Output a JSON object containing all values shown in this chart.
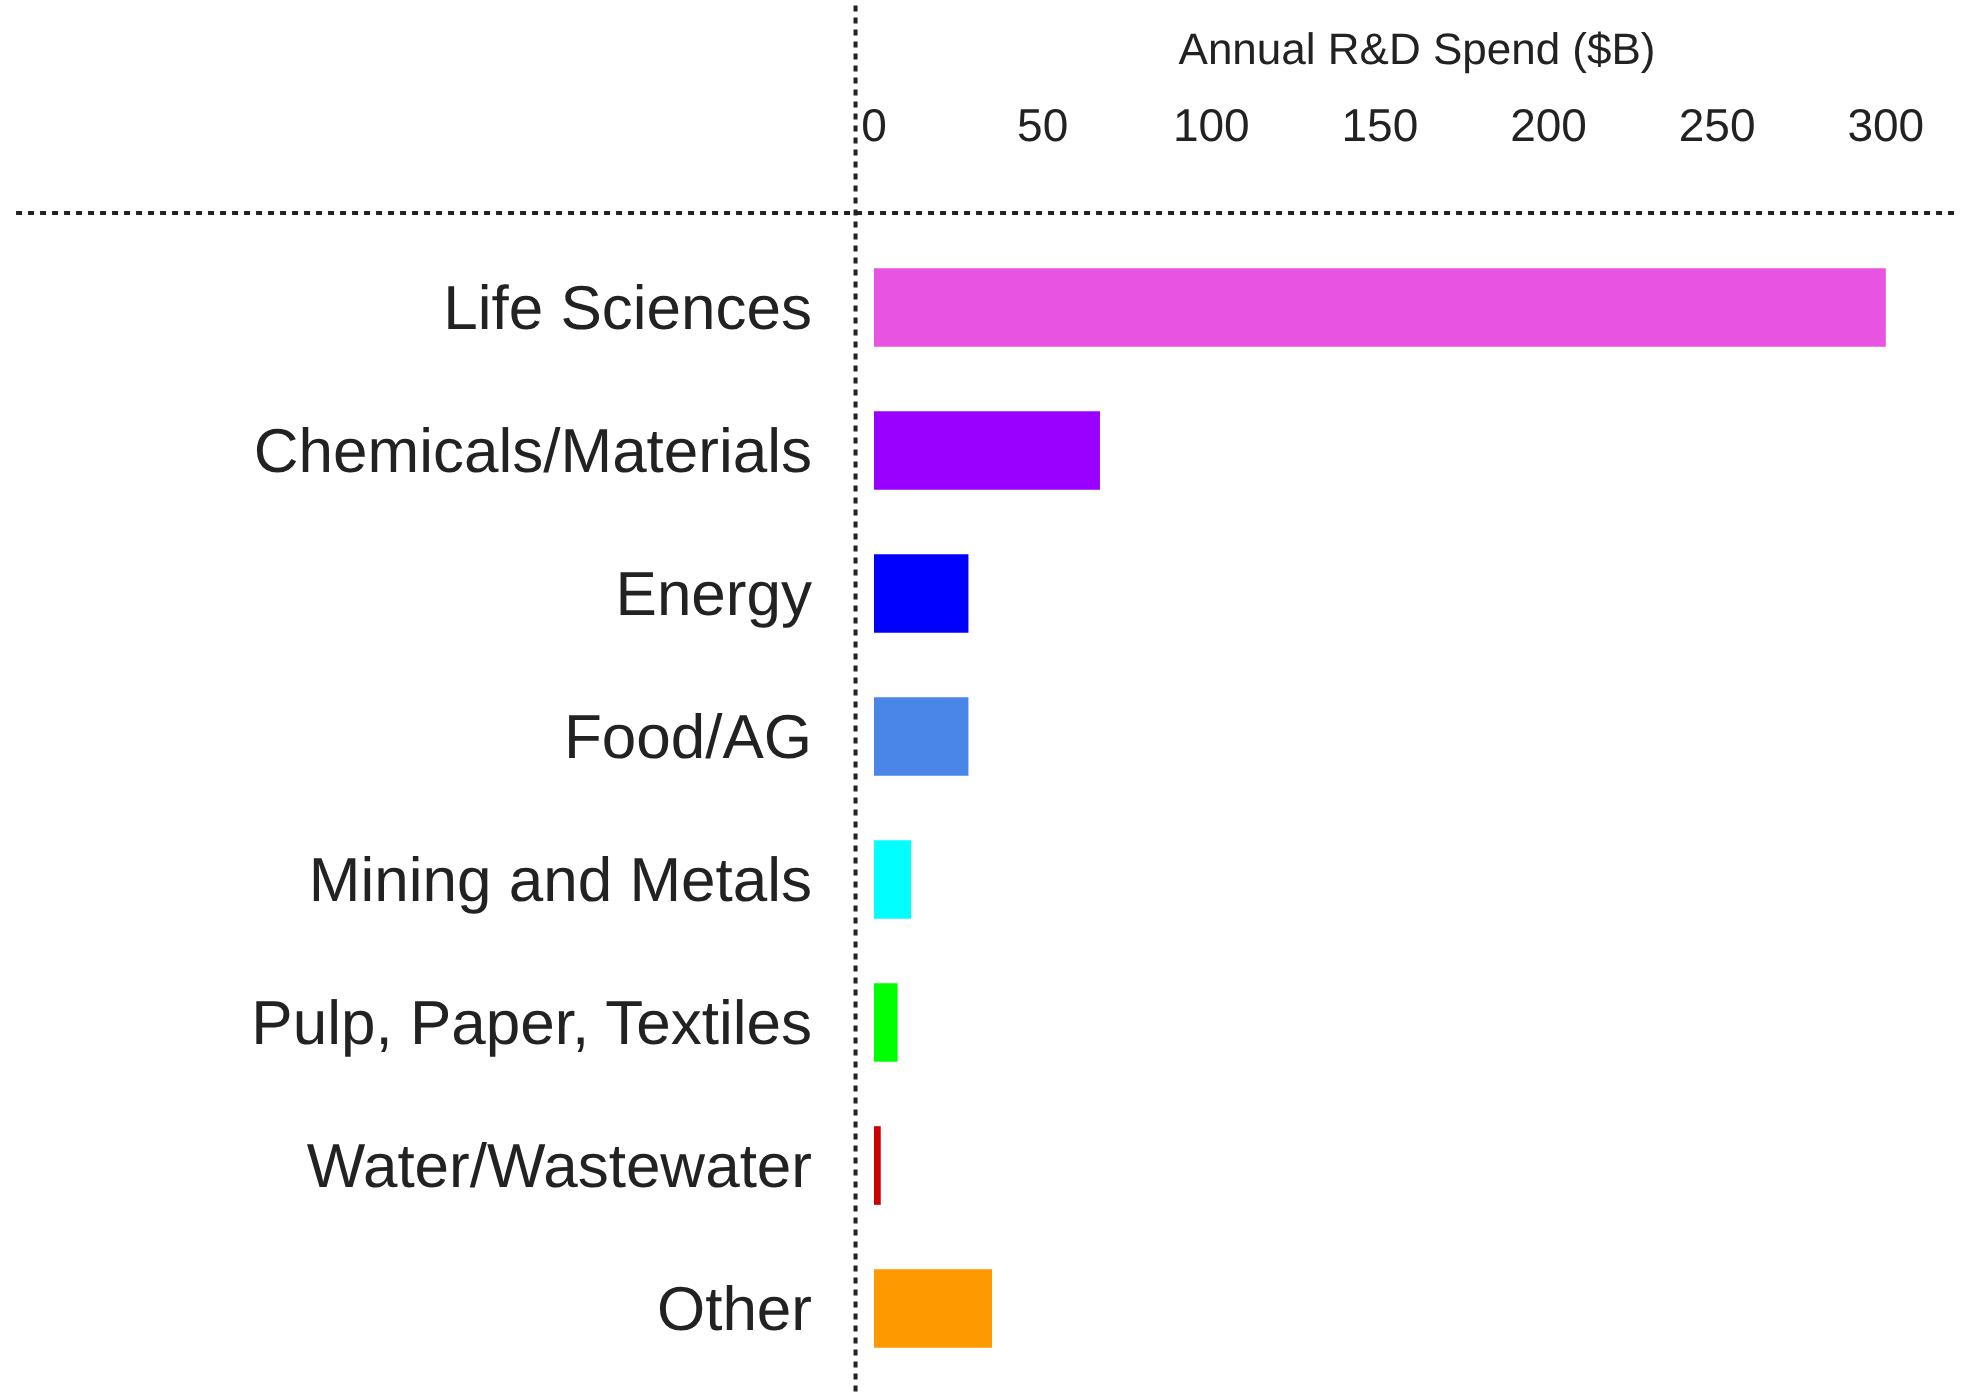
{
  "chart_data": {
    "type": "bar",
    "orientation": "horizontal",
    "xlabel": "Annual R&D Spend ($B)",
    "categories": [
      "Life Sciences",
      "Chemicals/Materials",
      "Energy",
      "Food/AG",
      "Mining and Metals",
      "Pulp, Paper, Textiles",
      "Water/Wastewater",
      "Other"
    ],
    "values": [
      300,
      67,
      28,
      28,
      11,
      7,
      2,
      35
    ],
    "colors": [
      "#e953e1",
      "#9900ff",
      "#0000ff",
      "#4a86e8",
      "#00ffff",
      "#00ff00",
      "#cc0000",
      "#ff9900"
    ],
    "xticks": [
      0,
      50,
      100,
      150,
      200,
      250,
      300
    ],
    "xlim": [
      0,
      322
    ]
  }
}
